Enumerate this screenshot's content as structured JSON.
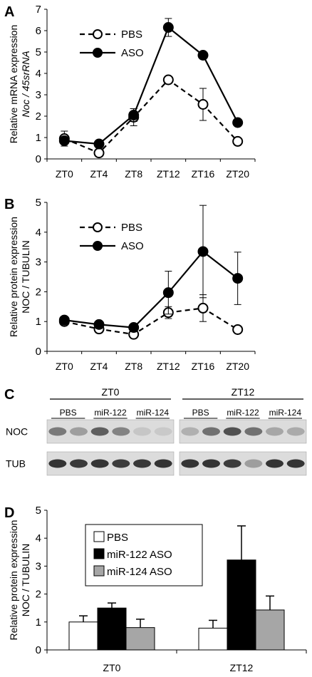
{
  "panels": [
    {
      "id": "A",
      "label": "A",
      "chart_data": {
        "type": "line",
        "ylabel_lines": [
          "Relative mRNA expression",
          "Noc / 45srRNA"
        ],
        "ylim": [
          0,
          7
        ],
        "yticks": [
          0,
          1,
          2,
          3,
          4,
          5,
          6,
          7
        ],
        "categories": [
          "ZT0",
          "ZT4",
          "ZT8",
          "ZT12",
          "ZT16",
          "ZT20"
        ],
        "legend_position": "top-left",
        "series": [
          {
            "name": "PBS",
            "values": [
              0.95,
              0.28,
              1.95,
              3.7,
              2.55,
              0.82
            ],
            "errors": [
              0.35,
              0.12,
              0.4,
              0.1,
              0.75,
              0.12
            ]
          },
          {
            "name": "ASO",
            "values": [
              0.85,
              0.7,
              2.05,
              6.15,
              4.85,
              1.7
            ],
            "errors": [
              0.15,
              0.12,
              0.3,
              0.42,
              0.15,
              0.12
            ]
          }
        ]
      }
    },
    {
      "id": "B",
      "label": "B",
      "chart_data": {
        "type": "line",
        "ylabel_lines": [
          "Relative protein expression",
          "NOC / TUBULIN"
        ],
        "ylim": [
          0,
          5
        ],
        "yticks": [
          0,
          1,
          2,
          3,
          4,
          5
        ],
        "categories": [
          "ZT0",
          "ZT4",
          "ZT8",
          "ZT12",
          "ZT16",
          "ZT20"
        ],
        "legend_position": "top-left",
        "series": [
          {
            "name": "PBS",
            "values": [
              1.0,
              0.75,
              0.57,
              1.3,
              1.45,
              0.73
            ],
            "errors": [
              0.06,
              0.05,
              0.05,
              0.2,
              0.45,
              0.06
            ]
          },
          {
            "name": "ASO",
            "values": [
              1.05,
              0.9,
              0.8,
              1.97,
              3.35,
              2.45
            ],
            "errors": [
              0.06,
              0.05,
              0.05,
              0.72,
              1.55,
              0.88
            ]
          }
        ]
      }
    },
    {
      "id": "C",
      "label": "C",
      "groups": [
        "ZT0",
        "ZT12"
      ],
      "lanes": [
        "PBS",
        "miR-122",
        "miR-124"
      ],
      "rows": [
        {
          "name": "NOC",
          "intensities": [
            [
              0.55,
              0.35,
              0.7,
              0.5,
              0.12,
              0.1
            ],
            [
              0.25,
              0.6,
              0.78,
              0.6,
              0.3,
              0.28
            ]
          ]
        },
        {
          "name": "TUB",
          "intensities": [
            [
              0.95,
              0.92,
              0.95,
              0.9,
              0.92,
              0.95
            ],
            [
              0.95,
              0.95,
              0.9,
              0.35,
              0.95,
              0.95
            ]
          ]
        }
      ]
    },
    {
      "id": "D",
      "label": "D",
      "chart_data": {
        "type": "bar",
        "ylabel_lines": [
          "Relative protein expression",
          "NOC / TUBULIN"
        ],
        "ylim": [
          0,
          5
        ],
        "yticks": [
          0,
          1,
          2,
          3,
          4,
          5
        ],
        "categories": [
          "ZT0",
          "ZT12"
        ],
        "legend_position": "top-left",
        "series": [
          {
            "name": "PBS",
            "color": "#ffffff",
            "values": [
              1.0,
              0.78
            ],
            "errors": [
              0.22,
              0.28
            ]
          },
          {
            "name": "miR-122 ASO",
            "color": "#000000",
            "values": [
              1.5,
              3.22
            ],
            "errors": [
              0.18,
              1.22
            ]
          },
          {
            "name": "miR-124 ASO",
            "color": "#a6a6a6",
            "values": [
              0.8,
              1.43
            ],
            "errors": [
              0.3,
              0.5
            ]
          }
        ]
      }
    }
  ]
}
